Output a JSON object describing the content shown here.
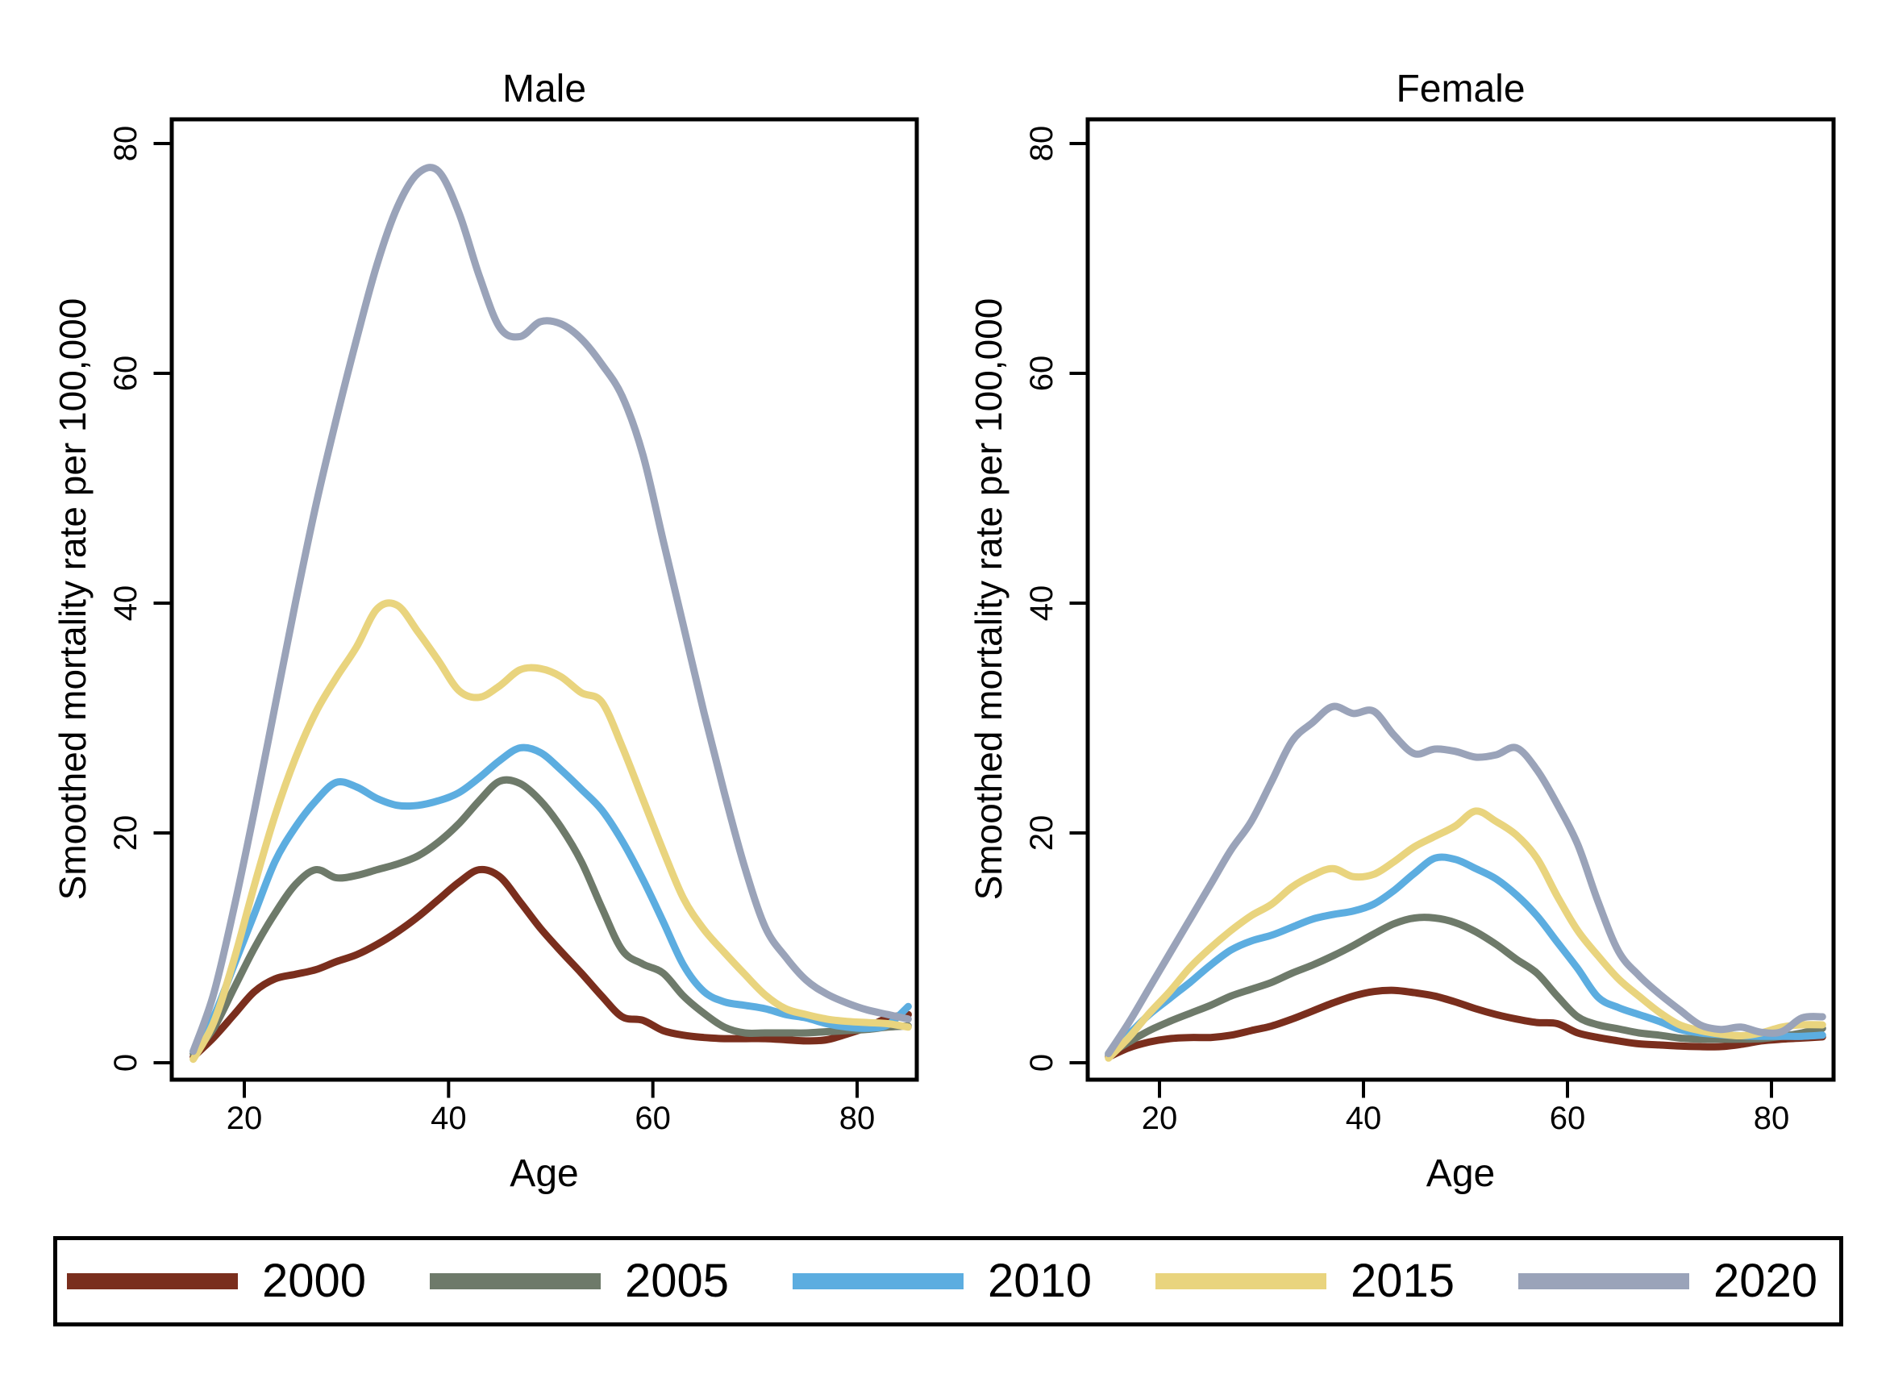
{
  "legend": {
    "position": "bottom",
    "items": [
      {
        "label": "2000",
        "color": "#7A2E1D"
      },
      {
        "label": "2005",
        "color": "#6E7A6A"
      },
      {
        "label": "2010",
        "color": "#5CADE0"
      },
      {
        "label": "2015",
        "color": "#E9D47E"
      },
      {
        "label": "2020",
        "color": "#9AA3B9"
      }
    ]
  },
  "chart_data": [
    {
      "type": "line",
      "title": "Male",
      "xlabel": "Age",
      "ylabel": "Smoothed mortality rate per 100,000",
      "xlim": [
        13,
        86.5
      ],
      "ylim": [
        0,
        80
      ],
      "x_ticks": [
        20,
        40,
        60,
        80
      ],
      "y_ticks": [
        0,
        20,
        40,
        60,
        80
      ],
      "grid": false,
      "x": [
        15,
        17,
        19,
        21,
        23,
        25,
        27,
        29,
        31,
        33,
        35,
        37,
        39,
        41,
        43,
        45,
        47,
        49,
        51,
        53,
        55,
        57,
        59,
        61,
        63,
        65,
        67,
        69,
        71,
        73,
        75,
        77,
        79,
        81,
        83,
        85
      ],
      "series": [
        {
          "name": "2000",
          "color": "#7A2E1D",
          "values": [
            0.5,
            2.2,
            4.2,
            6.2,
            7.3,
            7.7,
            8.1,
            8.8,
            9.4,
            10.3,
            11.4,
            12.7,
            14.2,
            15.7,
            16.8,
            16.2,
            14.0,
            11.7,
            9.7,
            7.8,
            5.8,
            4.0,
            3.7,
            2.8,
            2.4,
            2.2,
            2.1,
            2.1,
            2.1,
            2.0,
            1.9,
            2.0,
            2.5,
            3.1,
            3.9,
            4.2
          ]
        },
        {
          "name": "2005",
          "color": "#6E7A6A",
          "values": [
            0.8,
            3.0,
            6.5,
            10.0,
            13.0,
            15.5,
            16.8,
            16.1,
            16.3,
            16.8,
            17.3,
            18.0,
            19.2,
            20.8,
            22.8,
            24.5,
            24.3,
            22.8,
            20.5,
            17.5,
            13.5,
            9.8,
            8.6,
            7.8,
            5.8,
            4.3,
            3.1,
            2.6,
            2.6,
            2.6,
            2.6,
            2.7,
            2.8,
            2.9,
            3.1,
            3.2
          ]
        },
        {
          "name": "2010",
          "color": "#5CADE0",
          "values": [
            1.0,
            4.0,
            8.5,
            13.0,
            17.5,
            20.5,
            22.8,
            24.4,
            24.0,
            23.0,
            22.4,
            22.4,
            22.8,
            23.5,
            24.8,
            26.3,
            27.4,
            27.0,
            25.5,
            23.8,
            22.0,
            19.3,
            16.0,
            12.3,
            8.5,
            6.2,
            5.3,
            5.0,
            4.7,
            4.2,
            3.9,
            3.4,
            3.1,
            3.0,
            3.3,
            4.9
          ]
        },
        {
          "name": "2015",
          "color": "#E9D47E",
          "values": [
            0.3,
            3.5,
            9.0,
            15.5,
            21.5,
            26.5,
            30.5,
            33.5,
            36.2,
            39.5,
            39.8,
            37.5,
            35.0,
            32.4,
            31.8,
            32.8,
            34.2,
            34.3,
            33.6,
            32.2,
            31.4,
            27.5,
            23.0,
            18.5,
            14.3,
            11.6,
            9.6,
            7.7,
            5.9,
            4.7,
            4.2,
            3.8,
            3.6,
            3.5,
            3.4,
            3.1
          ]
        },
        {
          "name": "2020",
          "color": "#9AA3B9",
          "values": [
            1.0,
            6.0,
            13.5,
            22.0,
            31.0,
            40.0,
            48.5,
            56.0,
            63.0,
            69.5,
            74.5,
            77.4,
            77.6,
            74.0,
            68.5,
            64.0,
            63.2,
            64.5,
            64.3,
            63.0,
            60.8,
            58.0,
            53.0,
            45.5,
            38.0,
            30.5,
            23.5,
            17.0,
            11.8,
            9.2,
            7.2,
            6.0,
            5.2,
            4.6,
            4.2,
            3.8
          ]
        }
      ]
    },
    {
      "type": "line",
      "title": "Female",
      "xlabel": "Age",
      "ylabel": "Smoothed mortality rate per 100,000",
      "xlim": [
        13,
        86.5
      ],
      "ylim": [
        0,
        80
      ],
      "x_ticks": [
        20,
        40,
        60,
        80
      ],
      "y_ticks": [
        0,
        20,
        40,
        60,
        80
      ],
      "grid": false,
      "x": [
        15,
        17,
        19,
        21,
        23,
        25,
        27,
        29,
        31,
        33,
        35,
        37,
        39,
        41,
        43,
        45,
        47,
        49,
        51,
        53,
        55,
        57,
        59,
        61,
        63,
        65,
        67,
        69,
        71,
        73,
        75,
        77,
        79,
        81,
        83,
        85
      ],
      "series": [
        {
          "name": "2000",
          "color": "#7A2E1D",
          "values": [
            0.5,
            1.3,
            1.8,
            2.1,
            2.2,
            2.2,
            2.4,
            2.8,
            3.2,
            3.8,
            4.5,
            5.2,
            5.8,
            6.2,
            6.3,
            6.1,
            5.8,
            5.3,
            4.7,
            4.2,
            3.8,
            3.5,
            3.4,
            2.6,
            2.2,
            1.9,
            1.65,
            1.55,
            1.45,
            1.4,
            1.4,
            1.6,
            1.9,
            2.05,
            2.15,
            2.25
          ]
        },
        {
          "name": "2005",
          "color": "#6E7A6A",
          "values": [
            0.7,
            1.8,
            2.8,
            3.6,
            4.3,
            5.0,
            5.8,
            6.4,
            7.0,
            7.8,
            8.5,
            9.3,
            10.2,
            11.2,
            12.1,
            12.6,
            12.6,
            12.2,
            11.4,
            10.3,
            9.0,
            7.8,
            5.8,
            4.0,
            3.3,
            2.95,
            2.6,
            2.4,
            2.15,
            2.05,
            2.05,
            2.05,
            2.1,
            2.3,
            2.6,
            3.0
          ]
        },
        {
          "name": "2010",
          "color": "#5CADE0",
          "values": [
            0.8,
            2.5,
            4.2,
            5.6,
            7.0,
            8.5,
            9.8,
            10.6,
            11.1,
            11.8,
            12.5,
            12.9,
            13.2,
            13.8,
            15.0,
            16.5,
            17.8,
            17.7,
            16.9,
            16.0,
            14.6,
            12.8,
            10.5,
            8.2,
            5.7,
            4.8,
            4.2,
            3.6,
            2.9,
            2.6,
            2.45,
            2.35,
            2.3,
            2.3,
            2.3,
            2.4
          ]
        },
        {
          "name": "2015",
          "color": "#E9D47E",
          "values": [
            0.4,
            2.2,
            4.3,
            6.2,
            8.3,
            10.0,
            11.5,
            12.8,
            13.8,
            15.3,
            16.3,
            16.9,
            16.2,
            16.4,
            17.5,
            18.8,
            19.7,
            20.6,
            21.9,
            21.0,
            19.8,
            17.8,
            14.5,
            11.5,
            9.3,
            7.3,
            5.8,
            4.4,
            3.3,
            2.8,
            2.5,
            2.35,
            2.6,
            3.1,
            3.3,
            3.3
          ]
        },
        {
          "name": "2020",
          "color": "#9AA3B9",
          "values": [
            0.8,
            3.5,
            6.5,
            9.5,
            12.5,
            15.5,
            18.5,
            21.0,
            24.5,
            28.0,
            29.6,
            31.0,
            30.4,
            30.6,
            28.5,
            26.9,
            27.3,
            27.1,
            26.6,
            26.8,
            27.4,
            25.5,
            22.5,
            19.0,
            14.0,
            9.7,
            7.6,
            6.0,
            4.6,
            3.3,
            2.9,
            3.1,
            2.65,
            2.7,
            3.9,
            4.0
          ]
        }
      ]
    }
  ]
}
